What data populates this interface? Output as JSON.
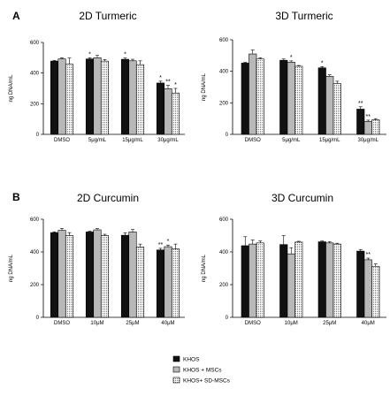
{
  "figure": {
    "panel_letters": [
      "A",
      "B"
    ],
    "legend": [
      {
        "label": "KHOS",
        "fill": "solid-black"
      },
      {
        "label": "KHOS + MSCs",
        "fill": "solid-gray"
      },
      {
        "label": "KHOS+ SD-MSCs",
        "fill": "dotted-white"
      }
    ]
  },
  "colors": {
    "khos": "#111111",
    "khos_mscs": "#b8b8b8",
    "khos_sd_mscs": "#ffffff",
    "axis": "#000000"
  },
  "chart_data": [
    {
      "type": "bar",
      "title": "2D Turmeric",
      "ylabel": "ng DNA/mL",
      "ylim": [
        0,
        600
      ],
      "yticks": [
        "0",
        "200",
        "400",
        "600"
      ],
      "categories": [
        "DMSO",
        "5μg/mL",
        "15μg/mL",
        "30μg/mL"
      ],
      "series": [
        {
          "name": "KHOS",
          "values": [
            478,
            492,
            490,
            335
          ],
          "errors": [
            5,
            8,
            8,
            12
          ]
        },
        {
          "name": "KHOS + MSCs",
          "values": [
            492,
            500,
            480,
            298
          ],
          "errors": [
            8,
            15,
            10,
            22
          ]
        },
        {
          "name": "KHOS+ SD-MSCs",
          "values": [
            458,
            478,
            455,
            270
          ],
          "errors": [
            40,
            10,
            25,
            30
          ]
        }
      ],
      "significance": [
        {
          "category": 1,
          "series": 0,
          "mark": "*"
        },
        {
          "category": 2,
          "series": 0,
          "mark": "*"
        },
        {
          "category": 3,
          "series": 0,
          "mark": "*"
        },
        {
          "category": 3,
          "series": 1,
          "mark": "**"
        },
        {
          "category": 3,
          "series": 2,
          "mark": "*"
        }
      ]
    },
    {
      "type": "bar",
      "title": "3D Turmeric",
      "ylabel": "ng DNA/mL",
      "ylim": [
        0,
        600
      ],
      "yticks": [
        "0",
        "200",
        "400",
        "600"
      ],
      "categories": [
        "DMSO",
        "5μg/mL",
        "15μg/mL",
        "30μg/mL"
      ],
      "series": [
        {
          "name": "KHOS",
          "values": [
            452,
            470,
            422,
            160
          ],
          "errors": [
            5,
            8,
            8,
            15
          ]
        },
        {
          "name": "KHOS + MSCs",
          "values": [
            510,
            458,
            368,
            82
          ],
          "errors": [
            25,
            8,
            10,
            8
          ]
        },
        {
          "name": "KHOS+ SD-MSCs",
          "values": [
            478,
            432,
            322,
            92
          ],
          "errors": [
            8,
            5,
            15,
            8
          ]
        }
      ],
      "significance": [
        {
          "category": 1,
          "series": 1,
          "mark": "*"
        },
        {
          "category": 2,
          "series": 0,
          "mark": "*"
        },
        {
          "category": 3,
          "series": 0,
          "mark": "**"
        },
        {
          "category": 3,
          "series": 1,
          "mark": "**"
        }
      ]
    },
    {
      "type": "bar",
      "title": "2D Curcumin",
      "ylabel": "ng DNA/mL",
      "ylim": [
        0,
        600
      ],
      "yticks": [
        "0",
        "200",
        "400",
        "600"
      ],
      "categories": [
        "DMSO",
        "10μM",
        "25μM",
        "40μM"
      ],
      "series": [
        {
          "name": "KHOS",
          "values": [
            518,
            522,
            502,
            412
          ],
          "errors": [
            5,
            5,
            15,
            10
          ]
        },
        {
          "name": "KHOS + MSCs",
          "values": [
            532,
            535,
            522,
            432
          ],
          "errors": [
            12,
            8,
            15,
            10
          ]
        },
        {
          "name": "KHOS+ SD-MSCs",
          "values": [
            500,
            500,
            430,
            418
          ],
          "errors": [
            18,
            8,
            18,
            30
          ]
        }
      ],
      "significance": [
        {
          "category": 3,
          "series": 0,
          "mark": "**"
        },
        {
          "category": 3,
          "series": 1,
          "mark": "*"
        }
      ]
    },
    {
      "type": "bar",
      "title": "3D Curcumin",
      "ylabel": "ng DNA/mL",
      "ylim": [
        0,
        600
      ],
      "yticks": [
        "0",
        "200",
        "400",
        "600"
      ],
      "categories": [
        "DMSO",
        "10μM",
        "25μM",
        "40μM"
      ],
      "series": [
        {
          "name": "KHOS",
          "values": [
            438,
            445,
            462,
            405
          ],
          "errors": [
            55,
            55,
            5,
            10
          ]
        },
        {
          "name": "KHOS + MSCs",
          "values": [
            448,
            388,
            455,
            352
          ],
          "errors": [
            25,
            38,
            8,
            10
          ]
        },
        {
          "name": "KHOS+ SD-MSCs",
          "values": [
            455,
            460,
            448,
            312
          ],
          "errors": [
            12,
            5,
            5,
            15
          ]
        }
      ],
      "significance": [
        {
          "category": 3,
          "series": 1,
          "mark": "**"
        }
      ]
    }
  ]
}
